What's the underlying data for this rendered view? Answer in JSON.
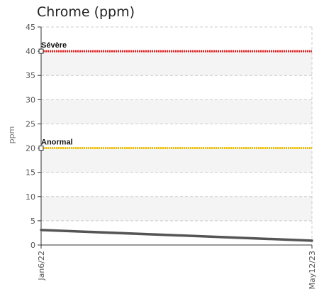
{
  "chart_data": {
    "type": "line",
    "title": "Chrome (ppm)",
    "ylabel": "ppm",
    "xlabel": "",
    "ylim": [
      0,
      45
    ],
    "yticks": [
      0,
      5,
      10,
      15,
      20,
      25,
      30,
      35,
      40,
      45
    ],
    "x_tick_labels": [
      "Jan6/22",
      "May12/23"
    ],
    "grid": true,
    "thresholds": [
      {
        "label": "Sévère",
        "value": 40,
        "color": "#e02020"
      },
      {
        "label": "Anormal",
        "value": 20,
        "color": "#f0c000"
      }
    ],
    "series": [
      {
        "color": "#555555",
        "x": [
          0,
          1
        ],
        "y": [
          3.1,
          0.9
        ]
      }
    ]
  }
}
